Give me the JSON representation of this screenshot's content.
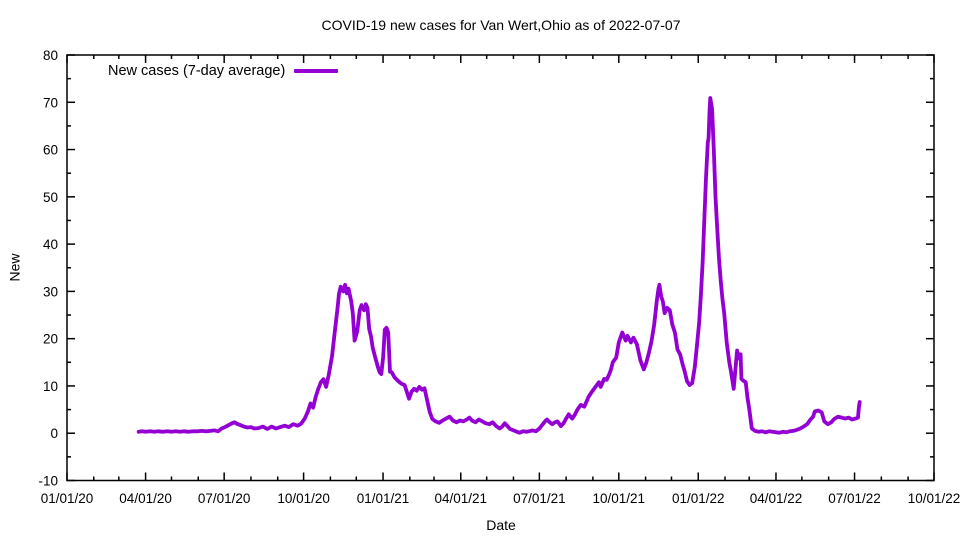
{
  "page": {
    "background": "#ffffff",
    "text_color": "#000000"
  },
  "chart_data": {
    "type": "line",
    "title": "COVID-19 new cases for Van Wert,Ohio as of 2022-07-07",
    "xlabel": "Date",
    "ylabel": "New",
    "grid": "off",
    "legend": {
      "position": "top-left-inside",
      "entries": [
        {
          "label": "New cases (7-day average)",
          "color": "#9400D3"
        }
      ]
    },
    "x_axis": {
      "range": [
        "2020-01-01",
        "2022-10-01"
      ],
      "minor_tick_unit": "month",
      "ticks": [
        {
          "date": "2020-01-01",
          "label": "01/01/20"
        },
        {
          "date": "2020-04-01",
          "label": "04/01/20"
        },
        {
          "date": "2020-07-01",
          "label": "07/01/20"
        },
        {
          "date": "2020-10-01",
          "label": "10/01/20"
        },
        {
          "date": "2021-01-01",
          "label": "01/01/21"
        },
        {
          "date": "2021-04-01",
          "label": "04/01/21"
        },
        {
          "date": "2021-07-01",
          "label": "07/01/21"
        },
        {
          "date": "2021-10-01",
          "label": "10/01/21"
        },
        {
          "date": "2022-01-01",
          "label": "01/01/22"
        },
        {
          "date": "2022-04-01",
          "label": "04/01/22"
        },
        {
          "date": "2022-07-01",
          "label": "07/01/22"
        },
        {
          "date": "2022-10-01",
          "label": "10/01/22"
        }
      ]
    },
    "y_axis": {
      "min": -10,
      "max": 80,
      "step": 10,
      "minor_step": 5,
      "ticks": [
        {
          "value": -10,
          "label": "-10"
        },
        {
          "value": 0,
          "label": "0"
        },
        {
          "value": 10,
          "label": "10"
        },
        {
          "value": 20,
          "label": "20"
        },
        {
          "value": 30,
          "label": "30"
        },
        {
          "value": 40,
          "label": "40"
        },
        {
          "value": 50,
          "label": "50"
        },
        {
          "value": 60,
          "label": "60"
        },
        {
          "value": 70,
          "label": "70"
        },
        {
          "value": 80,
          "label": "80"
        }
      ]
    },
    "series": [
      {
        "name": "New cases (7-day average)",
        "color": "#9400D3",
        "line_width": 3.8,
        "points": [
          [
            "2020-03-24",
            0.3
          ],
          [
            "2020-03-28",
            0.4
          ],
          [
            "2020-04-01",
            0.3
          ],
          [
            "2020-04-06",
            0.4
          ],
          [
            "2020-04-11",
            0.3
          ],
          [
            "2020-04-16",
            0.4
          ],
          [
            "2020-04-21",
            0.3
          ],
          [
            "2020-04-26",
            0.4
          ],
          [
            "2020-05-01",
            0.3
          ],
          [
            "2020-05-06",
            0.4
          ],
          [
            "2020-05-11",
            0.3
          ],
          [
            "2020-05-16",
            0.4
          ],
          [
            "2020-05-21",
            0.3
          ],
          [
            "2020-05-26",
            0.4
          ],
          [
            "2020-05-31",
            0.4
          ],
          [
            "2020-06-05",
            0.5
          ],
          [
            "2020-06-10",
            0.4
          ],
          [
            "2020-06-15",
            0.5
          ],
          [
            "2020-06-20",
            0.6
          ],
          [
            "2020-06-24",
            0.4
          ],
          [
            "2020-06-28",
            1.0
          ],
          [
            "2020-07-02",
            1.3
          ],
          [
            "2020-07-06",
            1.7
          ],
          [
            "2020-07-10",
            2.1
          ],
          [
            "2020-07-13",
            2.3
          ],
          [
            "2020-07-16",
            2.0
          ],
          [
            "2020-07-20",
            1.7
          ],
          [
            "2020-07-24",
            1.4
          ],
          [
            "2020-07-28",
            1.2
          ],
          [
            "2020-08-01",
            1.3
          ],
          [
            "2020-08-05",
            1.0
          ],
          [
            "2020-08-10",
            1.1
          ],
          [
            "2020-08-15",
            1.4
          ],
          [
            "2020-08-20",
            0.9
          ],
          [
            "2020-08-25",
            1.4
          ],
          [
            "2020-08-30",
            1.0
          ],
          [
            "2020-09-04",
            1.3
          ],
          [
            "2020-09-09",
            1.6
          ],
          [
            "2020-09-14",
            1.3
          ],
          [
            "2020-09-19",
            1.9
          ],
          [
            "2020-09-24",
            1.6
          ],
          [
            "2020-09-28",
            2.0
          ],
          [
            "2020-10-02",
            3.0
          ],
          [
            "2020-10-06",
            4.6
          ],
          [
            "2020-10-09",
            6.3
          ],
          [
            "2020-10-12",
            5.4
          ],
          [
            "2020-10-15",
            7.7
          ],
          [
            "2020-10-18",
            9.4
          ],
          [
            "2020-10-21",
            10.8
          ],
          [
            "2020-10-24",
            11.4
          ],
          [
            "2020-10-27",
            9.8
          ],
          [
            "2020-10-30",
            12.3
          ],
          [
            "2020-11-03",
            16.4
          ],
          [
            "2020-11-06",
            21.3
          ],
          [
            "2020-11-09",
            26.0
          ],
          [
            "2020-11-11",
            29.5
          ],
          [
            "2020-11-13",
            31.0
          ],
          [
            "2020-11-16",
            30.0
          ],
          [
            "2020-11-18",
            31.4
          ],
          [
            "2020-11-20",
            29.6
          ],
          [
            "2020-11-22",
            30.6
          ],
          [
            "2020-11-25",
            28.0
          ],
          [
            "2020-11-27",
            25.4
          ],
          [
            "2020-11-29",
            19.6
          ],
          [
            "2020-12-02",
            21.5
          ],
          [
            "2020-12-05",
            26.0
          ],
          [
            "2020-12-07",
            27.1
          ],
          [
            "2020-12-10",
            26.0
          ],
          [
            "2020-12-12",
            27.3
          ],
          [
            "2020-12-14",
            26.5
          ],
          [
            "2020-12-16",
            22.0
          ],
          [
            "2020-12-18",
            20.5
          ],
          [
            "2020-12-20",
            18.1
          ],
          [
            "2020-12-23",
            16.0
          ],
          [
            "2020-12-26",
            14.0
          ],
          [
            "2020-12-28",
            12.9
          ],
          [
            "2020-12-30",
            12.5
          ],
          [
            "2021-01-01",
            16.0
          ],
          [
            "2021-01-03",
            21.9
          ],
          [
            "2021-01-05",
            22.3
          ],
          [
            "2021-01-07",
            21.3
          ],
          [
            "2021-01-09",
            13.0
          ],
          [
            "2021-01-11",
            12.9
          ],
          [
            "2021-01-14",
            11.9
          ],
          [
            "2021-01-17",
            11.3
          ],
          [
            "2021-01-20",
            10.8
          ],
          [
            "2021-01-23",
            10.4
          ],
          [
            "2021-01-26",
            10.2
          ],
          [
            "2021-01-29",
            8.5
          ],
          [
            "2021-01-31",
            7.3
          ],
          [
            "2021-02-03",
            8.8
          ],
          [
            "2021-02-06",
            9.4
          ],
          [
            "2021-02-09",
            9.0
          ],
          [
            "2021-02-12",
            9.8
          ],
          [
            "2021-02-15",
            9.2
          ],
          [
            "2021-02-18",
            9.5
          ],
          [
            "2021-02-21",
            7.0
          ],
          [
            "2021-02-24",
            4.5
          ],
          [
            "2021-02-27",
            3.0
          ],
          [
            "2021-03-03",
            2.5
          ],
          [
            "2021-03-07",
            2.2
          ],
          [
            "2021-03-11",
            2.7
          ],
          [
            "2021-03-15",
            3.1
          ],
          [
            "2021-03-19",
            3.5
          ],
          [
            "2021-03-23",
            2.7
          ],
          [
            "2021-03-27",
            2.3
          ],
          [
            "2021-03-31",
            2.7
          ],
          [
            "2021-04-04",
            2.5
          ],
          [
            "2021-04-08",
            2.9
          ],
          [
            "2021-04-11",
            3.3
          ],
          [
            "2021-04-14",
            2.7
          ],
          [
            "2021-04-18",
            2.3
          ],
          [
            "2021-04-22",
            2.9
          ],
          [
            "2021-04-26",
            2.5
          ],
          [
            "2021-04-30",
            2.1
          ],
          [
            "2021-05-04",
            1.9
          ],
          [
            "2021-05-08",
            2.3
          ],
          [
            "2021-05-12",
            1.5
          ],
          [
            "2021-05-16",
            1.0
          ],
          [
            "2021-05-19",
            1.4
          ],
          [
            "2021-05-22",
            2.1
          ],
          [
            "2021-05-25",
            1.5
          ],
          [
            "2021-05-28",
            0.9
          ],
          [
            "2021-06-01",
            0.6
          ],
          [
            "2021-06-05",
            0.3
          ],
          [
            "2021-06-08",
            0.1
          ],
          [
            "2021-06-12",
            0.4
          ],
          [
            "2021-06-16",
            0.3
          ],
          [
            "2021-06-19",
            0.4
          ],
          [
            "2021-06-23",
            0.6
          ],
          [
            "2021-06-27",
            0.4
          ],
          [
            "2021-07-01",
            1.0
          ],
          [
            "2021-07-05",
            1.9
          ],
          [
            "2021-07-08",
            2.6
          ],
          [
            "2021-07-10",
            2.9
          ],
          [
            "2021-07-13",
            2.3
          ],
          [
            "2021-07-16",
            1.9
          ],
          [
            "2021-07-19",
            2.3
          ],
          [
            "2021-07-22",
            2.5
          ],
          [
            "2021-07-26",
            1.5
          ],
          [
            "2021-07-29",
            2.1
          ],
          [
            "2021-08-01",
            3.1
          ],
          [
            "2021-08-04",
            4.0
          ],
          [
            "2021-08-08",
            3.1
          ],
          [
            "2021-08-11",
            3.9
          ],
          [
            "2021-08-14",
            5.0
          ],
          [
            "2021-08-18",
            6.0
          ],
          [
            "2021-08-22",
            5.6
          ],
          [
            "2021-08-27",
            7.7
          ],
          [
            "2021-08-31",
            8.8
          ],
          [
            "2021-09-04",
            9.8
          ],
          [
            "2021-09-08",
            10.8
          ],
          [
            "2021-09-10",
            9.8
          ],
          [
            "2021-09-14",
            11.5
          ],
          [
            "2021-09-17",
            11.3
          ],
          [
            "2021-09-20",
            12.5
          ],
          [
            "2021-09-22",
            13.5
          ],
          [
            "2021-09-24",
            15.0
          ],
          [
            "2021-09-28",
            16.0
          ],
          [
            "2021-10-01",
            19.2
          ],
          [
            "2021-10-05",
            21.3
          ],
          [
            "2021-10-09",
            19.6
          ],
          [
            "2021-10-11",
            20.6
          ],
          [
            "2021-10-15",
            19.2
          ],
          [
            "2021-10-18",
            20.2
          ],
          [
            "2021-10-22",
            18.8
          ],
          [
            "2021-10-26",
            15.4
          ],
          [
            "2021-10-30",
            13.5
          ],
          [
            "2021-11-02",
            15.0
          ],
          [
            "2021-11-05",
            17.1
          ],
          [
            "2021-11-08",
            19.6
          ],
          [
            "2021-11-11",
            23.0
          ],
          [
            "2021-11-14",
            28.0
          ],
          [
            "2021-11-16",
            30.6
          ],
          [
            "2021-11-17",
            31.4
          ],
          [
            "2021-11-19",
            29.0
          ],
          [
            "2021-11-21",
            27.9
          ],
          [
            "2021-11-23",
            25.4
          ],
          [
            "2021-11-26",
            26.5
          ],
          [
            "2021-11-29",
            26.0
          ],
          [
            "2021-12-02",
            23.0
          ],
          [
            "2021-12-05",
            21.3
          ],
          [
            "2021-12-08",
            17.7
          ],
          [
            "2021-12-11",
            16.7
          ],
          [
            "2021-12-14",
            14.5
          ],
          [
            "2021-12-16",
            13.3
          ],
          [
            "2021-12-19",
            11.0
          ],
          [
            "2021-12-22",
            10.2
          ],
          [
            "2021-12-25",
            10.6
          ],
          [
            "2021-12-28",
            14.0
          ],
          [
            "2021-12-31",
            19.5
          ],
          [
            "2022-01-02",
            23.3
          ],
          [
            "2022-01-04",
            28.9
          ],
          [
            "2022-01-06",
            36.0
          ],
          [
            "2022-01-08",
            45.0
          ],
          [
            "2022-01-10",
            54.0
          ],
          [
            "2022-01-12",
            61.5
          ],
          [
            "2022-01-13",
            62.5
          ],
          [
            "2022-01-14",
            68.0
          ],
          [
            "2022-01-15",
            70.9
          ],
          [
            "2022-01-17",
            68.5
          ],
          [
            "2022-01-19",
            60.0
          ],
          [
            "2022-01-21",
            50.0
          ],
          [
            "2022-01-23",
            43.0
          ],
          [
            "2022-01-25",
            36.9
          ],
          [
            "2022-01-27",
            32.3
          ],
          [
            "2022-01-29",
            28.5
          ],
          [
            "2022-01-31",
            25.4
          ],
          [
            "2022-02-03",
            19.2
          ],
          [
            "2022-02-06",
            15.0
          ],
          [
            "2022-02-08",
            12.9
          ],
          [
            "2022-02-11",
            9.4
          ],
          [
            "2022-02-13",
            13.5
          ],
          [
            "2022-02-15",
            17.5
          ],
          [
            "2022-02-17",
            15.8
          ],
          [
            "2022-02-19",
            16.7
          ],
          [
            "2022-02-20",
            11.5
          ],
          [
            "2022-02-23",
            11.0
          ],
          [
            "2022-02-25",
            10.8
          ],
          [
            "2022-02-27",
            7.5
          ],
          [
            "2022-03-01",
            5.2
          ],
          [
            "2022-03-04",
            1.0
          ],
          [
            "2022-03-08",
            0.5
          ],
          [
            "2022-03-12",
            0.3
          ],
          [
            "2022-03-16",
            0.4
          ],
          [
            "2022-03-20",
            0.2
          ],
          [
            "2022-03-24",
            0.4
          ],
          [
            "2022-03-28",
            0.3
          ],
          [
            "2022-04-01",
            0.2
          ],
          [
            "2022-04-05",
            0.1
          ],
          [
            "2022-04-09",
            0.3
          ],
          [
            "2022-04-13",
            0.2
          ],
          [
            "2022-04-17",
            0.4
          ],
          [
            "2022-04-21",
            0.5
          ],
          [
            "2022-04-25",
            0.7
          ],
          [
            "2022-04-29",
            1.0
          ],
          [
            "2022-05-03",
            1.4
          ],
          [
            "2022-05-07",
            1.9
          ],
          [
            "2022-05-11",
            2.9
          ],
          [
            "2022-05-14",
            3.5
          ],
          [
            "2022-05-16",
            4.6
          ],
          [
            "2022-05-20",
            4.8
          ],
          [
            "2022-05-24",
            4.4
          ],
          [
            "2022-05-27",
            2.5
          ],
          [
            "2022-05-31",
            1.9
          ],
          [
            "2022-06-04",
            2.3
          ],
          [
            "2022-06-08",
            3.1
          ],
          [
            "2022-06-12",
            3.5
          ],
          [
            "2022-06-16",
            3.3
          ],
          [
            "2022-06-20",
            3.1
          ],
          [
            "2022-06-24",
            3.3
          ],
          [
            "2022-06-28",
            2.9
          ],
          [
            "2022-07-02",
            3.1
          ],
          [
            "2022-07-05",
            3.3
          ],
          [
            "2022-07-06",
            5.5
          ],
          [
            "2022-07-07",
            6.6
          ]
        ]
      }
    ]
  }
}
